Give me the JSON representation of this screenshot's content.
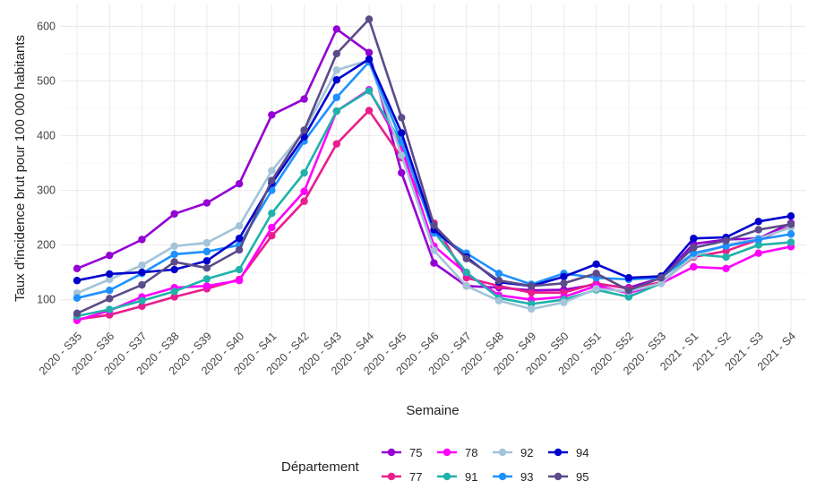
{
  "chart_data": {
    "type": "line",
    "xlabel": "Semaine",
    "ylabel": "Taux d'incidence brut pour 100 000 habitants",
    "categories": [
      "2020 - S35",
      "2020 - S36",
      "2020 - S37",
      "2020 - S38",
      "2020 - S39",
      "2020 - S40",
      "2020 - S41",
      "2020 - S42",
      "2020 - S43",
      "2020 - S44",
      "2020 - S45",
      "2020 - S46",
      "2020 - S47",
      "2020 - S48",
      "2020 - S49",
      "2020 - S50",
      "2020 - S51",
      "2020 - S52",
      "2020 - S53",
      "2021 - S1",
      "2021 - S2",
      "2021 - S3",
      "2021 - S4"
    ],
    "ylim": [
      42,
      640
    ],
    "yticks": [
      100,
      200,
      300,
      400,
      500,
      600
    ],
    "grid": true,
    "legend": {
      "title": "Département",
      "position": "bottom",
      "order": [
        "75",
        "78",
        "92",
        "94",
        "77",
        "91",
        "93",
        "95"
      ]
    },
    "series": [
      {
        "name": "75",
        "color": "#9400d3",
        "values": [
          157,
          181,
          210,
          257,
          277,
          312,
          438,
          467,
          595,
          552,
          332,
          167,
          125,
          122,
          117,
          118,
          128,
          122,
          140,
          202,
          210,
          212,
          240
        ]
      },
      {
        "name": "77",
        "color": "#e91e8c",
        "values": [
          64,
          72,
          88,
          105,
          120,
          137,
          217,
          280,
          385,
          446,
          360,
          240,
          140,
          125,
          113,
          113,
          130,
          120,
          132,
          178,
          189,
          210,
          234
        ]
      },
      {
        "name": "78",
        "color": "#ff00ff",
        "values": [
          62,
          80,
          105,
          122,
          125,
          135,
          232,
          298,
          445,
          484,
          378,
          198,
          148,
          108,
          100,
          105,
          125,
          112,
          130,
          160,
          157,
          185,
          197
        ]
      },
      {
        "name": "91",
        "color": "#20b2aa",
        "values": [
          70,
          82,
          98,
          115,
          138,
          155,
          258,
          332,
          445,
          482,
          388,
          224,
          150,
          103,
          92,
          100,
          118,
          105,
          130,
          183,
          178,
          200,
          205
        ]
      },
      {
        "name": "92",
        "color": "#a3c4d9",
        "values": [
          112,
          137,
          163,
          198,
          204,
          235,
          336,
          408,
          520,
          538,
          364,
          190,
          125,
          98,
          83,
          95,
          120,
          115,
          130,
          180,
          200,
          212,
          232
        ]
      },
      {
        "name": "93",
        "color": "#1e90ff",
        "values": [
          103,
          117,
          148,
          183,
          188,
          200,
          300,
          390,
          470,
          535,
          390,
          222,
          185,
          148,
          128,
          148,
          140,
          137,
          140,
          185,
          198,
          210,
          220
        ]
      },
      {
        "name": "94",
        "color": "#0000cd",
        "values": [
          135,
          147,
          150,
          155,
          171,
          212,
          313,
          398,
          502,
          540,
          405,
          228,
          178,
          132,
          125,
          142,
          165,
          140,
          143,
          212,
          214,
          243,
          253
        ]
      },
      {
        "name": "95",
        "color": "#5b4b8a",
        "values": [
          75,
          102,
          127,
          169,
          158,
          191,
          318,
          410,
          550,
          613,
          433,
          236,
          175,
          135,
          125,
          130,
          148,
          117,
          140,
          195,
          208,
          228,
          238
        ]
      }
    ]
  }
}
